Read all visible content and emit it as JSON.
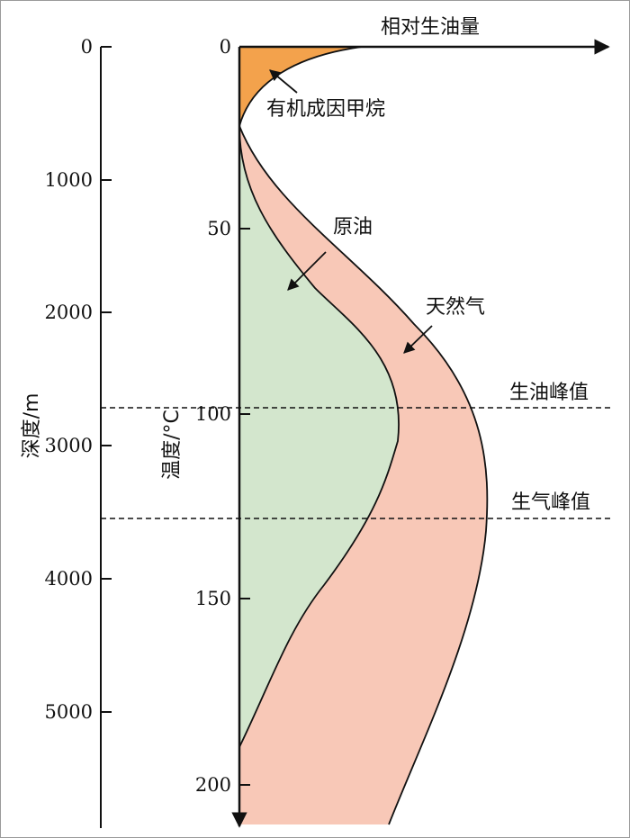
{
  "depth_axis": {
    "label": "深度/m",
    "ticks": [
      "0",
      "1000",
      "2000",
      "3000",
      "4000",
      "5000"
    ]
  },
  "temp_axis": {
    "label": "温度/°C",
    "ticks": [
      "0",
      "50",
      "100",
      "150",
      "200"
    ]
  },
  "yield_axis": {
    "label": "相对生油量"
  },
  "regions": {
    "methane": "有机成因甲烷",
    "oil": "原油",
    "gas": "天然气"
  },
  "peaks": {
    "oil_peak": "生油峰值",
    "gas_peak": "生气峰值"
  },
  "colors": {
    "methane": "#f3a24c",
    "oil": "#d3e6cd",
    "gas": "#f8c8b7",
    "stroke": "#111111"
  }
}
